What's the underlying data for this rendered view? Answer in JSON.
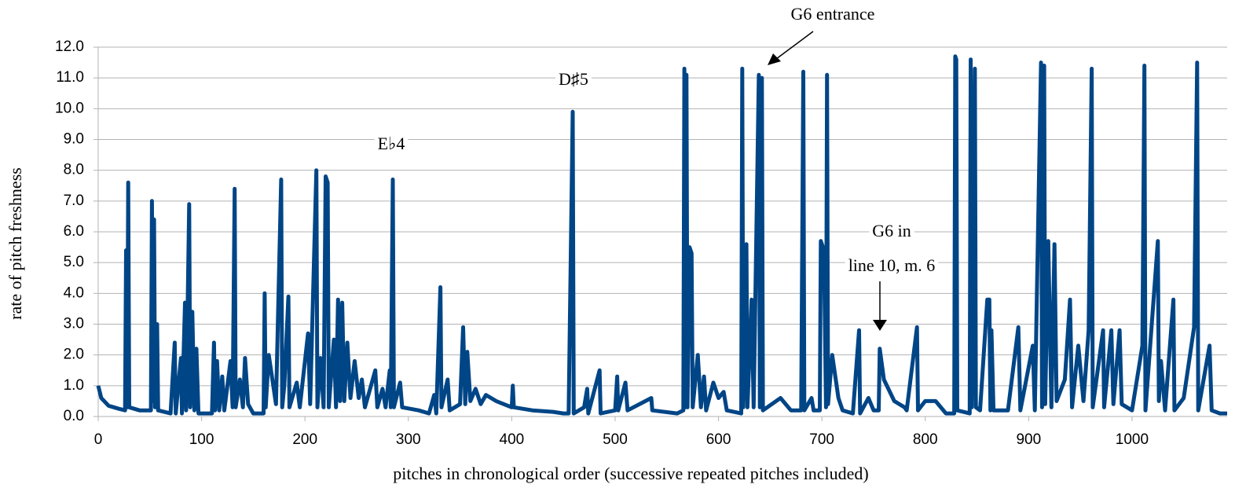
{
  "chart_data": {
    "type": "line",
    "x_label": "pitches in chronological order (successive repeated pitches included)",
    "y_label": "rate of pitch freshness",
    "annotations": [
      "G6 entrance",
      "D♯5",
      "E♭4",
      "G6 in",
      "line 10, m. 6"
    ],
    "xlim": [
      0,
      1092
    ],
    "ylim": [
      0,
      12
    ],
    "xticks": [
      0,
      100,
      200,
      300,
      400,
      500,
      600,
      700,
      800,
      900,
      1000
    ],
    "yticks": [
      {
        "value": 0,
        "label": "0.0"
      },
      {
        "value": 1,
        "label": "1.0"
      },
      {
        "value": 2,
        "label": "2.0"
      },
      {
        "value": 3,
        "label": "3.0"
      },
      {
        "value": 4,
        "label": "4.0"
      },
      {
        "value": 5,
        "label": "5.0"
      },
      {
        "value": 6,
        "label": "6.0"
      },
      {
        "value": 7,
        "label": "7.0"
      },
      {
        "value": 8,
        "label": "8.0"
      },
      {
        "value": 9,
        "label": "9.0"
      },
      {
        "value": 10,
        "label": "10.0"
      },
      {
        "value": 11,
        "label": "11.0"
      },
      {
        "value": 12,
        "label": "12.0"
      }
    ],
    "grid": true,
    "x": [
      0,
      3,
      10,
      20,
      26,
      27,
      28,
      29,
      30,
      40,
      51,
      52,
      53,
      54,
      55,
      57,
      58,
      70,
      74,
      75,
      80,
      81,
      84,
      85,
      88,
      89,
      91,
      93,
      95,
      97,
      110,
      112,
      113,
      115,
      117,
      120,
      122,
      128,
      130,
      132,
      133,
      137,
      140,
      142,
      145,
      150,
      160,
      161,
      162,
      165,
      172,
      177,
      178,
      180,
      184,
      185,
      192,
      195,
      203,
      205,
      211,
      212,
      215,
      218,
      220,
      222,
      223,
      228,
      230,
      232,
      234,
      236,
      238,
      241,
      244,
      248,
      252,
      255,
      258,
      268,
      270,
      275,
      278,
      282,
      283,
      285,
      286,
      292,
      294,
      310,
      320,
      325,
      327,
      331,
      332,
      338,
      340,
      350,
      353,
      355,
      357,
      360,
      365,
      370,
      375,
      385,
      400,
      401,
      402,
      420,
      440,
      450,
      455,
      459,
      460,
      470,
      473,
      474,
      485,
      486,
      500,
      502,
      503,
      510,
      512,
      535,
      536,
      560,
      566,
      567,
      568,
      569,
      570,
      572,
      574,
      575,
      580,
      583,
      586,
      588,
      595,
      600,
      605,
      608,
      622,
      623,
      624,
      627,
      628,
      632,
      634,
      639,
      640,
      642,
      643,
      660,
      670,
      680,
      682,
      683,
      690,
      692,
      698,
      699,
      702,
      704,
      705,
      706,
      710,
      716,
      720,
      730,
      736,
      737,
      745,
      750,
      755,
      756,
      760,
      770,
      780,
      782,
      792,
      793,
      800,
      810,
      820,
      828,
      829,
      830,
      831,
      843,
      844,
      845,
      848,
      849,
      853,
      860,
      862,
      863,
      864,
      866,
      880,
      890,
      892,
      904,
      906,
      912,
      913,
      915,
      916,
      919,
      922,
      925,
      927,
      935,
      940,
      942,
      948,
      953,
      958,
      961,
      962,
      972,
      973,
      980,
      982,
      988,
      990,
      1000,
      1010,
      1012,
      1013,
      1025,
      1026,
      1028,
      1032,
      1040,
      1041,
      1050,
      1060,
      1063,
      1064,
      1075,
      1077,
      1085,
      1092
    ],
    "series": [
      {
        "name": "rate of pitch freshness",
        "color": "#004586",
        "values": [
          1.0,
          0.6,
          0.35,
          0.25,
          0.2,
          5.4,
          0.3,
          7.6,
          0.3,
          0.2,
          0.2,
          7.0,
          0.5,
          6.4,
          0.3,
          3.0,
          0.2,
          0.1,
          2.4,
          0.1,
          1.9,
          0.1,
          3.7,
          0.2,
          6.9,
          0.3,
          3.4,
          0.2,
          2.2,
          0.1,
          0.1,
          2.4,
          0.2,
          1.8,
          0.2,
          1.3,
          0.2,
          1.8,
          0.3,
          7.4,
          0.3,
          1.2,
          0.3,
          1.9,
          0.4,
          0.1,
          0.1,
          4.0,
          0.3,
          2.0,
          0.4,
          7.7,
          0.3,
          1.0,
          3.9,
          0.3,
          1.1,
          0.3,
          2.7,
          0.4,
          8.0,
          0.3,
          1.9,
          0.3,
          7.8,
          7.6,
          0.3,
          2.5,
          0.3,
          3.8,
          0.5,
          3.7,
          0.5,
          2.4,
          0.6,
          1.8,
          0.6,
          1.2,
          0.3,
          1.5,
          0.3,
          0.9,
          0.3,
          1.5,
          0.3,
          7.7,
          0.3,
          1.1,
          0.3,
          0.2,
          0.1,
          0.7,
          0.1,
          4.2,
          0.3,
          1.2,
          0.2,
          0.4,
          2.9,
          0.4,
          2.1,
          0.5,
          0.9,
          0.4,
          0.7,
          0.5,
          0.3,
          1.0,
          0.3,
          0.2,
          0.15,
          0.1,
          0.1,
          9.9,
          0.1,
          0.3,
          0.9,
          0.1,
          1.5,
          0.1,
          0.2,
          1.3,
          0.2,
          1.1,
          0.2,
          0.6,
          0.2,
          0.1,
          0.2,
          11.3,
          0.3,
          11.1,
          0.3,
          5.5,
          5.3,
          0.3,
          2.0,
          0.3,
          1.3,
          0.2,
          1.1,
          0.6,
          0.8,
          0.2,
          0.1,
          11.3,
          0.3,
          5.6,
          0.3,
          3.8,
          0.3,
          11.1,
          0.3,
          11.0,
          0.2,
          0.6,
          0.2,
          0.2,
          11.2,
          0.2,
          0.6,
          0.2,
          0.2,
          5.7,
          5.4,
          0.3,
          11.1,
          0.4,
          2.0,
          0.6,
          0.2,
          0.1,
          2.8,
          0.1,
          0.6,
          0.2,
          0.2,
          2.2,
          1.2,
          0.5,
          0.3,
          0.2,
          2.9,
          0.2,
          0.5,
          0.5,
          0.1,
          0.1,
          11.7,
          11.6,
          0.2,
          0.1,
          11.6,
          0.3,
          11.3,
          0.3,
          0.2,
          3.8,
          3.8,
          0.2,
          2.8,
          0.2,
          0.2,
          2.9,
          0.2,
          2.3,
          0.2,
          11.5,
          0.3,
          11.4,
          0.4,
          5.7,
          0.3,
          5.6,
          0.5,
          1.2,
          3.8,
          0.3,
          2.3,
          0.5,
          2.8,
          11.3,
          0.3,
          2.8,
          0.3,
          2.8,
          0.4,
          2.8,
          0.4,
          0.2,
          2.3,
          11.4,
          0.2,
          5.7,
          0.5,
          1.8,
          0.2,
          3.8,
          0.2,
          0.6,
          2.9,
          11.5,
          0.2,
          2.3,
          0.2,
          0.1,
          0.1
        ]
      }
    ]
  }
}
